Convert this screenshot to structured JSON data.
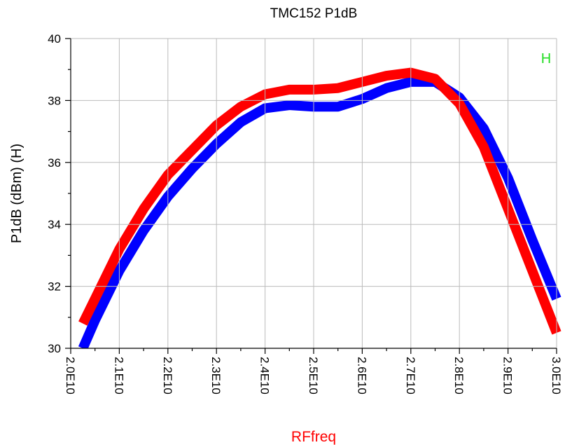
{
  "chart_data": {
    "type": "line",
    "title": "TMC152 P1dB",
    "x_label": "RFfreq",
    "y_label": "P1dB (dBm)  (H)",
    "annotation": "H",
    "x": [
      20250000000,
      20500000000,
      21000000000,
      21500000000,
      22000000000,
      22500000000,
      23000000000,
      23500000000,
      24000000000,
      24500000000,
      25000000000,
      25500000000,
      26000000000,
      26500000000,
      27000000000,
      27500000000,
      28000000000,
      28500000000,
      29000000000,
      29500000000,
      30000000000
    ],
    "series": [
      {
        "name": "blue",
        "color": "#0000ff",
        "values": [
          30.0,
          30.9,
          32.5,
          33.8,
          34.9,
          35.8,
          36.6,
          37.3,
          37.75,
          37.85,
          37.8,
          37.8,
          38.05,
          38.4,
          38.6,
          38.6,
          38.1,
          37.1,
          35.5,
          33.5,
          31.6
        ]
      },
      {
        "name": "red",
        "color": "#ff0000",
        "values": [
          30.8,
          31.6,
          33.2,
          34.5,
          35.6,
          36.4,
          37.2,
          37.8,
          38.2,
          38.35,
          38.35,
          38.4,
          38.6,
          38.8,
          38.9,
          38.7,
          37.9,
          36.5,
          34.5,
          32.5,
          30.5
        ]
      }
    ],
    "xlim": [
      20000000000,
      30000000000
    ],
    "xticks": [
      {
        "value": 20000000000,
        "label": "2.0E10"
      },
      {
        "value": 21000000000,
        "label": "2.1E10"
      },
      {
        "value": 22000000000,
        "label": "2.2E10"
      },
      {
        "value": 23000000000,
        "label": "2.3E10"
      },
      {
        "value": 24000000000,
        "label": "2.4E10"
      },
      {
        "value": 25000000000,
        "label": "2.5E10"
      },
      {
        "value": 26000000000,
        "label": "2.6E10"
      },
      {
        "value": 27000000000,
        "label": "2.7E10"
      },
      {
        "value": 28000000000,
        "label": "2.8E10"
      },
      {
        "value": 29000000000,
        "label": "2.9E10"
      },
      {
        "value": 30000000000,
        "label": "3.0E10"
      }
    ],
    "ylim": [
      30,
      40
    ],
    "yticks": [
      30,
      32,
      34,
      36,
      38,
      40
    ],
    "grid": true
  }
}
